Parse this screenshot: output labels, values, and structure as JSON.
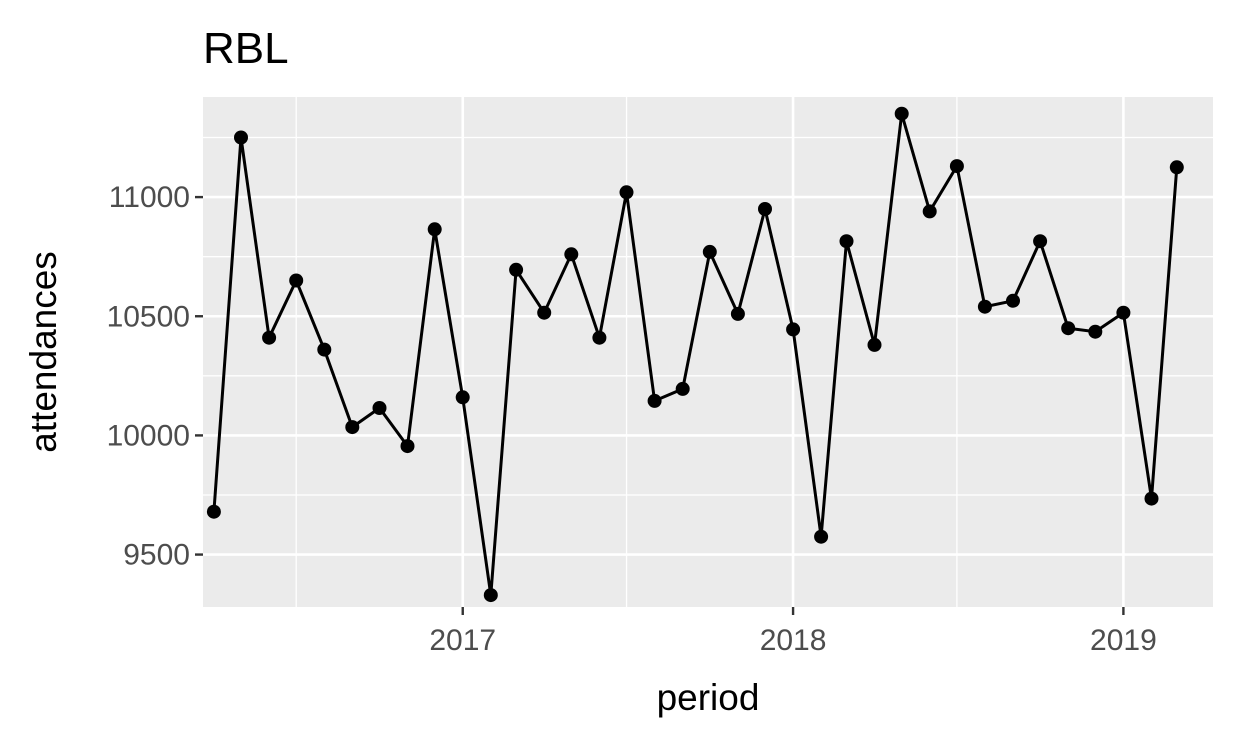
{
  "chart_data": {
    "type": "line",
    "title": "RBL",
    "xlabel": "period",
    "ylabel": "attendances",
    "x_ticks": [
      "2017",
      "2018",
      "2019"
    ],
    "y_ticks": [
      9500,
      10000,
      10500,
      11000
    ],
    "ylim": [
      9280,
      11420
    ],
    "xlim": [
      "2016-03-20",
      "2019-04-10"
    ],
    "grid": true,
    "panel_background": "#ebebeb",
    "grid_color": "#ffffff",
    "line_color": "#000000",
    "series": [
      {
        "x": [
          "2016-04-01",
          "2016-05-01",
          "2016-06-01",
          "2016-07-01",
          "2016-08-01",
          "2016-09-01",
          "2016-10-01",
          "2016-11-01",
          "2016-12-01",
          "2017-01-01",
          "2017-02-01",
          "2017-03-01",
          "2017-04-01",
          "2017-05-01",
          "2017-06-01",
          "2017-07-01",
          "2017-08-01",
          "2017-09-01",
          "2017-10-01",
          "2017-11-01",
          "2017-12-01",
          "2018-01-01",
          "2018-02-01",
          "2018-03-01",
          "2018-04-01",
          "2018-05-01",
          "2018-06-01",
          "2018-07-01",
          "2018-08-01",
          "2018-09-01",
          "2018-10-01",
          "2018-11-01",
          "2018-12-01",
          "2019-01-01",
          "2019-02-01",
          "2019-03-01"
        ],
        "values": [
          9680,
          11250,
          10410,
          10650,
          10360,
          10035,
          10115,
          9955,
          10865,
          10160,
          9330,
          10695,
          10515,
          10760,
          10410,
          11020,
          10145,
          10195,
          10770,
          10510,
          10950,
          10445,
          9575,
          10815,
          10380,
          11350,
          10940,
          11130,
          10540,
          10565,
          10815,
          10450,
          10435,
          10515,
          9735,
          11125
        ]
      }
    ]
  }
}
